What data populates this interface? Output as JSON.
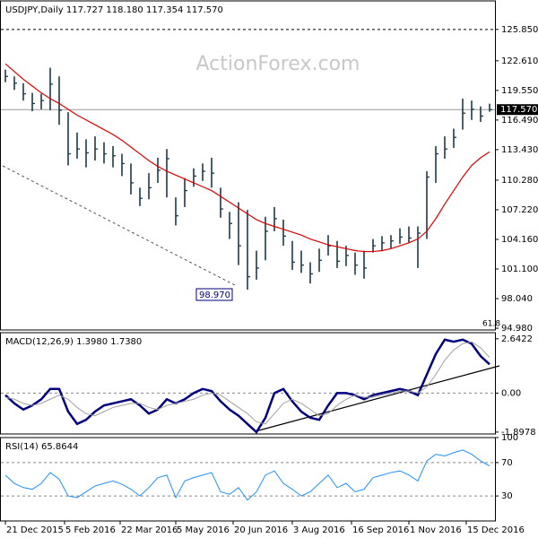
{
  "chart_data": [
    {
      "type": "ohlc",
      "title": "USDJPY,Daily 117.727 118.180 117.354 117.570",
      "watermark": "ActionForex.com",
      "annotation": "61.8",
      "color": "#1b3a4b",
      "x": [
        0,
        5,
        10,
        15,
        20,
        25,
        30,
        35,
        40,
        45,
        50,
        55,
        60,
        65,
        70,
        75,
        80,
        85,
        90,
        95,
        100,
        105,
        110,
        115,
        120,
        125,
        130,
        135,
        140,
        145,
        150,
        155,
        160,
        165,
        170,
        175,
        180,
        185,
        190,
        195,
        200,
        205,
        210,
        215,
        220,
        225,
        230,
        235,
        240,
        245,
        250,
        255,
        260,
        265,
        270
      ],
      "high": [
        121.7,
        121.0,
        120.3,
        119.3,
        119.2,
        121.9,
        121.0,
        117.3,
        115.2,
        114.5,
        114.8,
        114.2,
        113.8,
        113.0,
        112.0,
        109.5,
        111.0,
        112.6,
        113.5,
        108.5,
        110.5,
        111.5,
        112.0,
        112.6,
        109.5,
        107.0,
        108.0,
        107.2,
        103.0,
        106.5,
        107.5,
        106.2,
        104.0,
        103.0,
        101.8,
        103.2,
        104.6,
        104.0,
        103.5,
        102.8,
        103.0,
        104.2,
        104.5,
        104.6,
        105.3,
        105.5,
        105.5,
        111.2,
        113.8,
        114.8,
        115.6,
        118.7,
        118.5,
        117.9,
        118.18
      ],
      "low": [
        120.4,
        119.6,
        118.5,
        117.4,
        117.6,
        117.5,
        116.0,
        111.8,
        112.5,
        111.6,
        112.3,
        112.0,
        111.6,
        110.7,
        108.8,
        107.6,
        108.3,
        110.0,
        108.5,
        105.6,
        107.5,
        109.6,
        110.2,
        109.5,
        106.4,
        104.2,
        101.5,
        98.97,
        100.0,
        102.0,
        105.0,
        103.5,
        101.0,
        100.7,
        99.6,
        100.8,
        102.5,
        101.2,
        101.4,
        100.5,
        100.1,
        102.8,
        103.0,
        103.2,
        103.7,
        103.8,
        101.2,
        104.2,
        110.0,
        112.5,
        113.6,
        115.5,
        116.5,
        116.3,
        117.354
      ],
      "close": [
        121.0,
        120.3,
        119.2,
        118.2,
        118.5,
        120.2,
        117.5,
        113.0,
        113.5,
        113.1,
        113.5,
        113.0,
        112.8,
        112.0,
        110.0,
        108.4,
        109.5,
        111.3,
        112.5,
        106.6,
        109.2,
        110.7,
        111.2,
        111.0,
        107.3,
        105.8,
        103.5,
        100.3,
        101.2,
        105.0,
        106.3,
        104.5,
        101.8,
        101.5,
        100.6,
        102.0,
        103.5,
        101.9,
        102.5,
        101.5,
        101.2,
        103.5,
        103.8,
        104.0,
        104.4,
        104.3,
        104.8,
        110.6,
        113.0,
        113.5,
        114.7,
        117.2,
        117.6,
        116.9,
        117.57
      ],
      "sma": {
        "color": "#e00000",
        "values": [
          122.3,
          121.5,
          120.7,
          120.0,
          119.3,
          118.7,
          118.2,
          117.6,
          117.0,
          116.5,
          116.0,
          115.5,
          115.0,
          114.4,
          113.7,
          113.0,
          112.3,
          111.7,
          111.2,
          110.8,
          110.4,
          110.0,
          109.6,
          109.2,
          108.6,
          108.0,
          107.4,
          106.8,
          106.2,
          105.8,
          105.5,
          105.2,
          104.9,
          104.6,
          104.2,
          103.9,
          103.6,
          103.4,
          103.2,
          103.0,
          102.9,
          102.9,
          103.0,
          103.2,
          103.5,
          103.8,
          104.2,
          105.0,
          106.3,
          107.8,
          109.2,
          110.6,
          111.8,
          112.6,
          113.2
        ]
      },
      "xlim": [
        -1.5,
        272
      ],
      "ylim": [
        94.8,
        128.8
      ],
      "yticks": [
        {
          "value": 94.98,
          "label": "94.980"
        },
        {
          "value": 98.04,
          "label": "98.040"
        },
        {
          "value": 101.1,
          "label": "101.100"
        },
        {
          "value": 104.16,
          "label": "104.160"
        },
        {
          "value": 107.22,
          "label": "107.220"
        },
        {
          "value": 110.28,
          "label": "110.280"
        },
        {
          "value": 113.43,
          "label": "113.430"
        },
        {
          "value": 116.49,
          "label": "116.490"
        },
        {
          "value": 119.55,
          "label": "119.550"
        },
        {
          "value": 122.61,
          "label": "122.610"
        },
        {
          "value": 125.85,
          "label": "125.850"
        }
      ],
      "levels": [
        125.85
      ],
      "current": {
        "value": 117.57,
        "label": "117.570"
      },
      "low_label": {
        "value": 98.97,
        "label": "98.970"
      }
    },
    {
      "type": "line",
      "title": "MACD(12,26,9) 1.3980 1.7380",
      "x": [
        0,
        5,
        10,
        15,
        20,
        25,
        30,
        35,
        40,
        45,
        50,
        55,
        60,
        65,
        70,
        75,
        80,
        85,
        90,
        95,
        100,
        105,
        110,
        115,
        120,
        125,
        130,
        135,
        140,
        145,
        150,
        155,
        160,
        165,
        170,
        175,
        180,
        185,
        190,
        195,
        200,
        205,
        210,
        215,
        220,
        225,
        230,
        235,
        240,
        245,
        250,
        255,
        260,
        265,
        270
      ],
      "series": [
        {
          "color": "#000080",
          "values": [
            -0.1,
            -0.5,
            -0.8,
            -0.6,
            -0.3,
            0.2,
            0.2,
            -0.9,
            -1.5,
            -1.3,
            -0.9,
            -0.6,
            -0.5,
            -0.4,
            -0.3,
            -0.6,
            -1.0,
            -0.8,
            -0.3,
            -0.5,
            -0.3,
            0.0,
            0.2,
            0.1,
            -0.4,
            -0.8,
            -1.1,
            -1.5,
            -1.9,
            -1.2,
            0.0,
            0.2,
            -0.4,
            -0.9,
            -1.2,
            -1.3,
            -0.6,
            0.0,
            0.0,
            -0.1,
            -0.3,
            -0.1,
            0.0,
            0.1,
            0.2,
            0.1,
            -0.1,
            0.9,
            1.9,
            2.6,
            2.5,
            2.6,
            2.4,
            1.8,
            1.398
          ]
        },
        {
          "color": "#a0a0a0",
          "values": [
            -0.2,
            -0.3,
            -0.5,
            -0.6,
            -0.5,
            -0.3,
            -0.1,
            -0.3,
            -0.7,
            -1.0,
            -1.1,
            -0.9,
            -0.7,
            -0.6,
            -0.5,
            -0.5,
            -0.7,
            -0.8,
            -0.6,
            -0.5,
            -0.4,
            -0.3,
            -0.1,
            0.0,
            -0.1,
            -0.4,
            -0.7,
            -1.0,
            -1.4,
            -1.5,
            -1.0,
            -0.5,
            -0.3,
            -0.5,
            -0.8,
            -1.1,
            -1.0,
            -0.6,
            -0.3,
            -0.1,
            -0.2,
            -0.2,
            -0.1,
            0.0,
            0.1,
            0.1,
            0.0,
            0.3,
            0.9,
            1.6,
            2.1,
            2.4,
            2.5,
            2.2,
            1.738
          ]
        }
      ],
      "xlim": [
        -1.5,
        272
      ],
      "ylim": [
        -1.99,
        2.94
      ],
      "yticks": [
        2.6422,
        {
          "value": 0,
          "label": "0.00"
        },
        -1.8978
      ],
      "levels": [
        0
      ]
    },
    {
      "type": "line",
      "title": "RSI(14) 65.8644",
      "x": [
        0,
        5,
        10,
        15,
        20,
        25,
        30,
        35,
        40,
        45,
        50,
        55,
        60,
        65,
        70,
        75,
        80,
        85,
        90,
        95,
        100,
        105,
        110,
        115,
        120,
        125,
        130,
        135,
        140,
        145,
        150,
        155,
        160,
        165,
        170,
        175,
        180,
        185,
        190,
        195,
        200,
        205,
        210,
        215,
        220,
        225,
        230,
        235,
        240,
        245,
        250,
        255,
        260,
        265,
        270
      ],
      "series": [
        {
          "color": "#1e90ff",
          "values": [
            55,
            45,
            40,
            38,
            45,
            58,
            50,
            30,
            28,
            35,
            42,
            45,
            48,
            44,
            38,
            30,
            40,
            52,
            55,
            28,
            48,
            52,
            55,
            58,
            35,
            32,
            40,
            25,
            35,
            55,
            60,
            45,
            38,
            30,
            35,
            45,
            55,
            40,
            45,
            35,
            38,
            52,
            55,
            58,
            60,
            55,
            48,
            72,
            80,
            78,
            82,
            85,
            80,
            72,
            65.8644
          ]
        }
      ],
      "xlim": [
        -1.5,
        272
      ],
      "ylim": [
        0,
        100
      ],
      "yticks": [
        30,
        70,
        100
      ],
      "levels": [
        30,
        70
      ],
      "xticks": [
        {
          "value": 0,
          "label": "21 Dec 2015"
        },
        {
          "value": 33,
          "label": "5 Feb 2016"
        },
        {
          "value": 64,
          "label": "22 Mar 2016"
        },
        {
          "value": 95,
          "label": "5 May 2016"
        },
        {
          "value": 127,
          "label": "20 Jun 2016"
        },
        {
          "value": 160,
          "label": "3 Aug 2016"
        },
        {
          "value": 193,
          "label": "16 Sep 2016"
        },
        {
          "value": 225,
          "label": "1 Nov 2016"
        },
        {
          "value": 257,
          "label": "15 Dec 2016"
        }
      ]
    }
  ]
}
